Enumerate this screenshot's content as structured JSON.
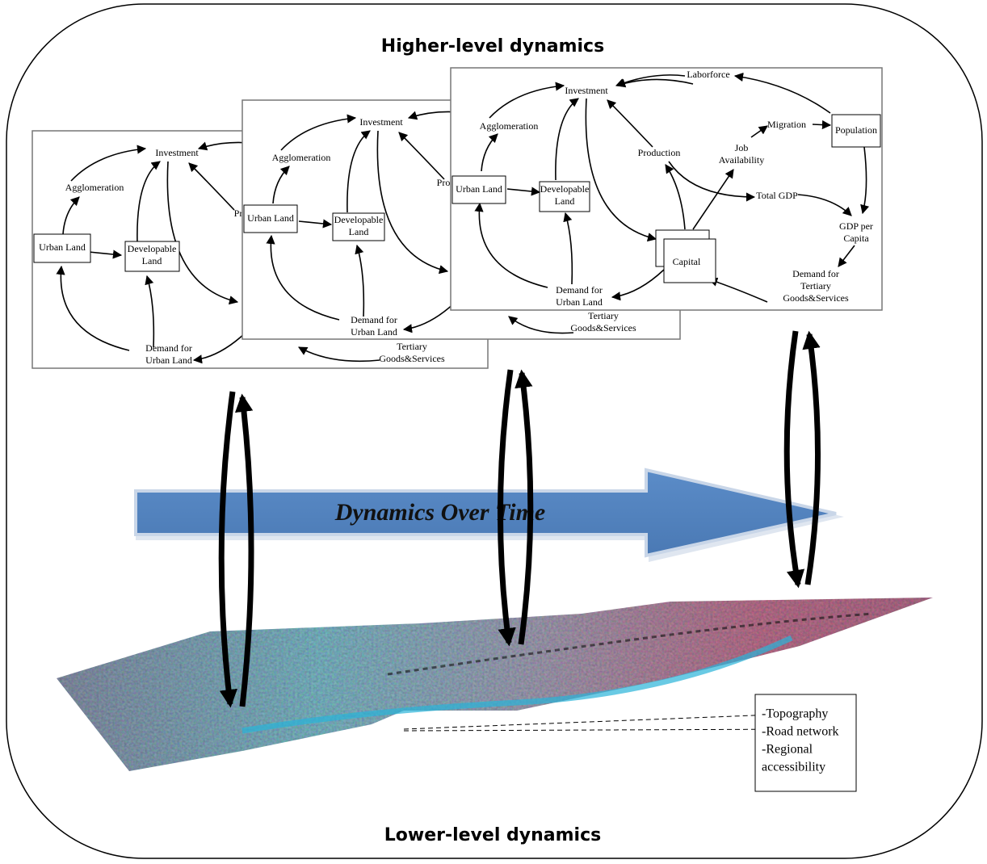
{
  "header": {
    "title": "Higher-level dynamics"
  },
  "footer": {
    "title": "Lower-level dynamics"
  },
  "arrow": {
    "label": "Dynamics Over Time"
  },
  "panels": [
    {
      "nodes": [
        {
          "lines": [
            "Investment"
          ]
        },
        {
          "lines": [
            "Agglomeration"
          ]
        },
        {
          "lines": [
            "Urban Land"
          ]
        },
        {
          "lines": [
            "Developable",
            "Land"
          ]
        },
        {
          "lines": [
            "Demand for",
            "Urban Land"
          ]
        },
        {
          "lines": [
            "Pro"
          ]
        },
        {
          "lines": [
            "Tertiary",
            "Goods&Services"
          ]
        }
      ]
    },
    {
      "nodes": [
        {
          "lines": [
            "Investment"
          ]
        },
        {
          "lines": [
            "Agglomeration"
          ]
        },
        {
          "lines": [
            "Urban Land"
          ]
        },
        {
          "lines": [
            "Developable",
            "Land"
          ]
        },
        {
          "lines": [
            "Demand for",
            "Urban Land"
          ]
        },
        {
          "lines": [
            "Prod"
          ]
        },
        {
          "lines": [
            "Tertiary",
            "Goods&Services"
          ]
        }
      ]
    },
    {
      "nodes": [
        {
          "lines": [
            "Laborforce"
          ]
        },
        {
          "lines": [
            "Investment"
          ]
        },
        {
          "lines": [
            "Agglomeration"
          ]
        },
        {
          "lines": [
            "Migration"
          ]
        },
        {
          "lines": [
            "Population"
          ]
        },
        {
          "lines": [
            "Production"
          ]
        },
        {
          "lines": [
            "Job",
            "Availability"
          ]
        },
        {
          "lines": [
            "Urban Land"
          ]
        },
        {
          "lines": [
            "Developable",
            "Land"
          ]
        },
        {
          "lines": [
            "Total GDP"
          ]
        },
        {
          "lines": [
            "GDP per",
            "Capita"
          ]
        },
        {
          "lines": [
            "Capital"
          ]
        },
        {
          "lines": [
            "Demand for",
            "Urban Land"
          ]
        },
        {
          "lines": [
            "Demand for",
            "Tertiary",
            "Goods&Services"
          ]
        }
      ]
    }
  ],
  "legend": {
    "lines": [
      "-Topography",
      "-Road network",
      "-Regional",
      "accessibility"
    ]
  }
}
